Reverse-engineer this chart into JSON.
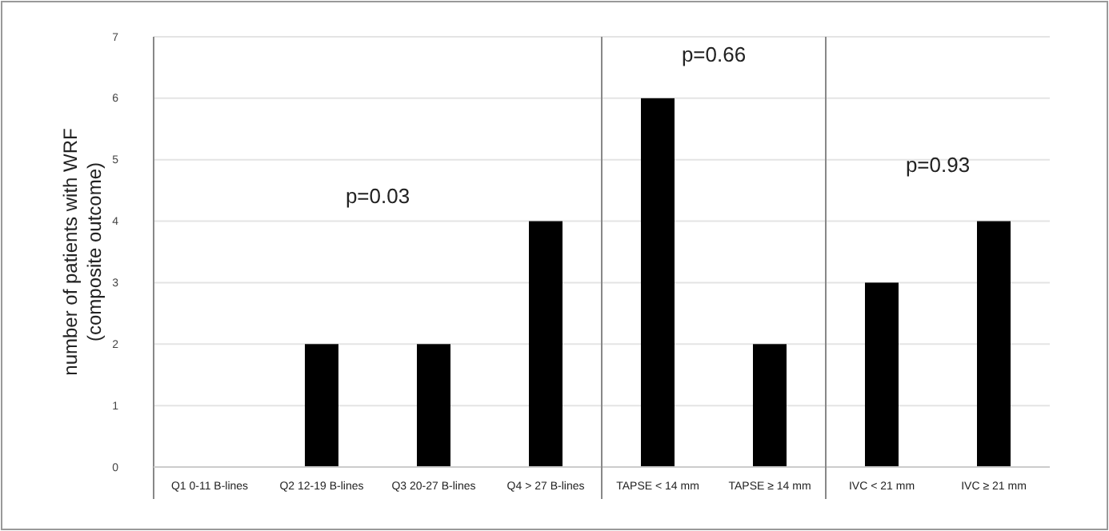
{
  "chart_data": {
    "type": "bar",
    "ylabel": "number of patients with WRF\n(composite outcome)",
    "categories": [
      "Q1 0-11 B-lines",
      "Q2 12-19 B-lines",
      "Q3 20-27 B-lines",
      "Q4 > 27 B-lines",
      "TAPSE < 14 mm",
      "TAPSE ≥ 14 mm",
      "IVC < 21 mm",
      "IVC ≥ 21 mm"
    ],
    "values": [
      0,
      2,
      2,
      4,
      6,
      2,
      3,
      4
    ],
    "color": "#000000",
    "ylim": [
      0,
      7
    ],
    "yticks": [
      0,
      1,
      2,
      3,
      4,
      5,
      6,
      7
    ],
    "grid": "y",
    "annotations": [
      "p=0.03",
      "p=0.66",
      "p=0.93"
    ]
  }
}
